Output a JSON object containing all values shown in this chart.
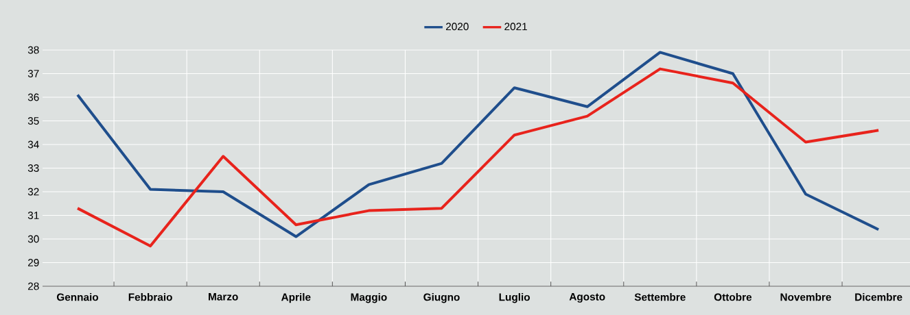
{
  "chart_data": {
    "type": "line",
    "categories": [
      "Gennaio",
      "Febbraio",
      "Marzo",
      "Aprile",
      "Maggio",
      "Giugno",
      "Luglio",
      "Agosto",
      "Settembre",
      "Ottobre",
      "Novembre",
      "Dicembre"
    ],
    "series": [
      {
        "name": "2020",
        "color": "#1f4e8c",
        "values": [
          36.1,
          32.1,
          32.0,
          30.1,
          32.3,
          33.2,
          36.4,
          35.6,
          37.9,
          37.0,
          31.9,
          30.4
        ]
      },
      {
        "name": "2021",
        "color": "#e8231c",
        "values": [
          31.3,
          29.7,
          33.5,
          30.6,
          31.2,
          31.3,
          34.4,
          35.2,
          37.2,
          36.6,
          34.1,
          34.6
        ]
      }
    ],
    "ylim": [
      28,
      38
    ],
    "yticks": [
      28,
      29,
      30,
      31,
      32,
      33,
      34,
      35,
      36,
      37,
      38
    ],
    "grid": true,
    "legend": "top",
    "marker": "none",
    "line_style": "solid"
  }
}
